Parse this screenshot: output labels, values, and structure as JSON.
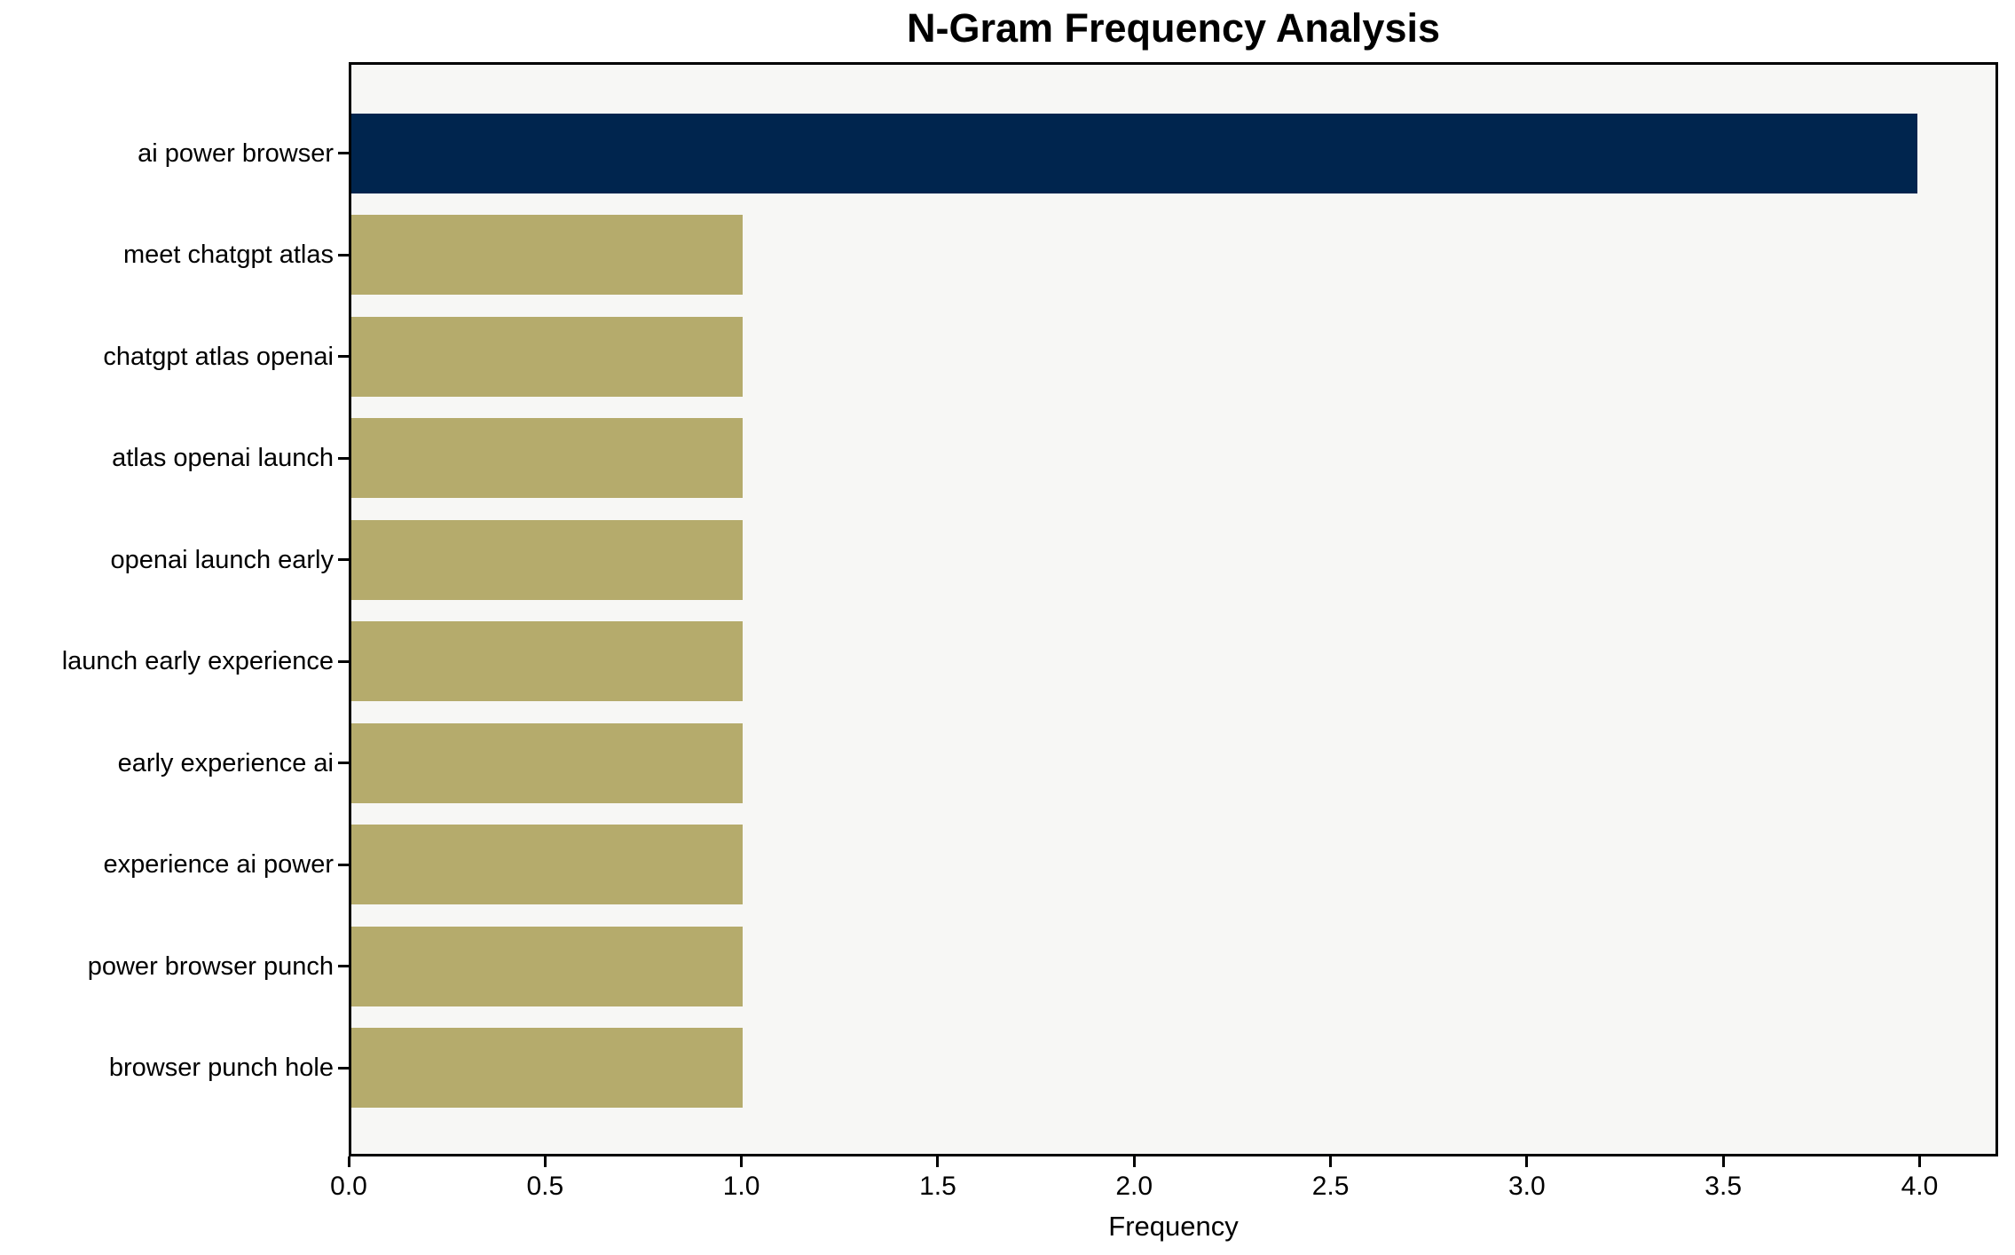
{
  "title": "N-Gram Frequency Analysis",
  "chart_data": {
    "type": "bar",
    "orientation": "horizontal",
    "title": "N-Gram Frequency Analysis",
    "xlabel": "Frequency",
    "ylabel": "",
    "categories": [
      "ai power browser",
      "meet chatgpt atlas",
      "chatgpt atlas openai",
      "atlas openai launch",
      "openai launch early",
      "launch early experience",
      "early experience ai",
      "experience ai power",
      "power browser punch",
      "browser punch hole"
    ],
    "values": [
      4,
      1,
      1,
      1,
      1,
      1,
      1,
      1,
      1,
      1
    ],
    "bar_colors": [
      "#00254e",
      "#b5ab6c",
      "#b5ab6c",
      "#b5ab6c",
      "#b5ab6c",
      "#b5ab6c",
      "#b5ab6c",
      "#b5ab6c",
      "#b5ab6c",
      "#b5ab6c"
    ],
    "xlim": [
      0,
      4.2
    ],
    "xticks": [
      "0.0",
      "0.5",
      "1.0",
      "1.5",
      "2.0",
      "2.5",
      "3.0",
      "3.5",
      "4.0"
    ],
    "grid": false,
    "legend": "none",
    "colors": {
      "highlight_bar": "#00254e",
      "default_bar": "#b5ab6c",
      "plot_background": "#f7f7f5",
      "figure_background": "#ffffff",
      "axis": "#000000",
      "text": "#000000"
    }
  }
}
